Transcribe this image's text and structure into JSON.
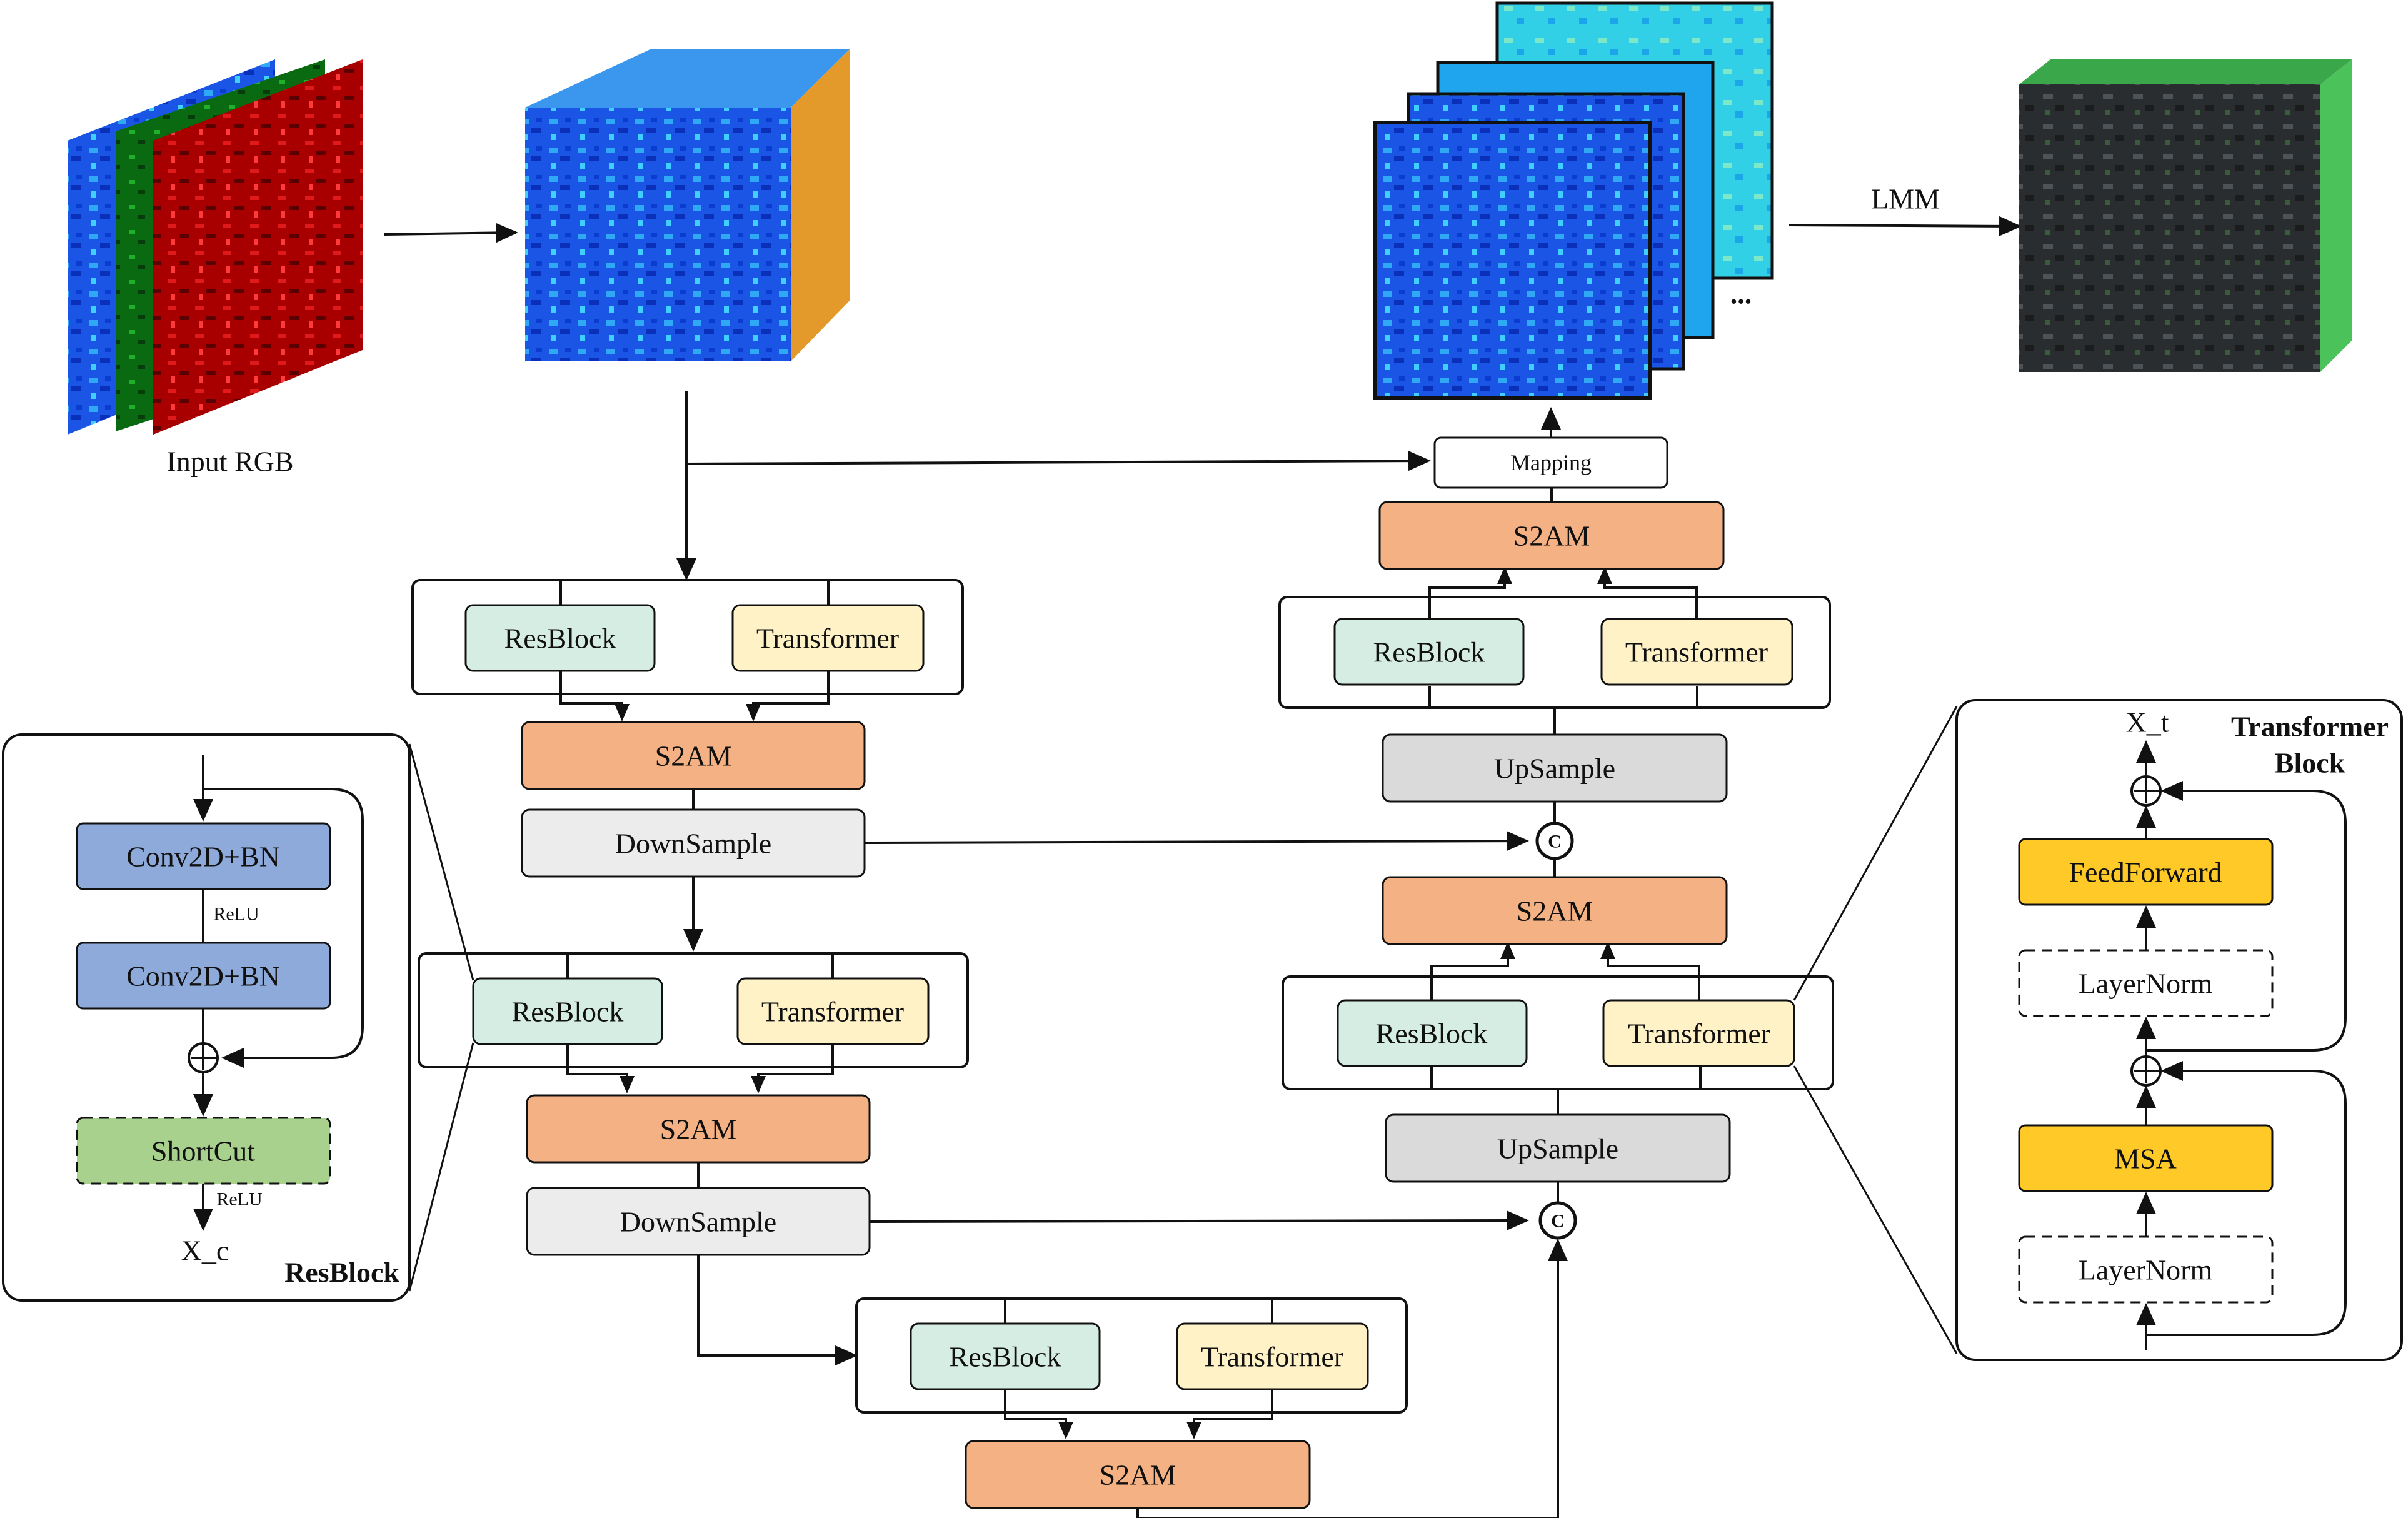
{
  "labels": {
    "input_rgb": "Input RGB",
    "lmm": "LMM",
    "ellipsis": "...",
    "mapping": "Mapping",
    "s2am": "S2AM",
    "resblock": "ResBlock",
    "transformer": "Transformer",
    "downsample": "DownSample",
    "upsample": "UpSample",
    "concat": "C",
    "plus": "+"
  },
  "resblock_panel": {
    "title": "ResBlock",
    "conv1": "Conv2D+BN",
    "relu1": "ReLU",
    "conv2": "Conv2D+BN",
    "shortcut": "ShortCut",
    "relu2": "ReLU",
    "output": "X_c"
  },
  "transformer_panel": {
    "title_line1": "Transformer",
    "title_line2": "Block",
    "output": "X_t",
    "feedforward": "FeedForward",
    "layernorm1": "LayerNorm",
    "msa": "MSA",
    "layernorm2": "LayerNorm"
  },
  "colors": {
    "s2am": "#f4b183",
    "resblock": "#d6ede3",
    "transformer": "#fff2c6",
    "sample": "#ececec",
    "upsample": "#dadada",
    "conv": "#8eaadb",
    "shortcut": "#a9d18e",
    "yellow": "#ffca28"
  }
}
